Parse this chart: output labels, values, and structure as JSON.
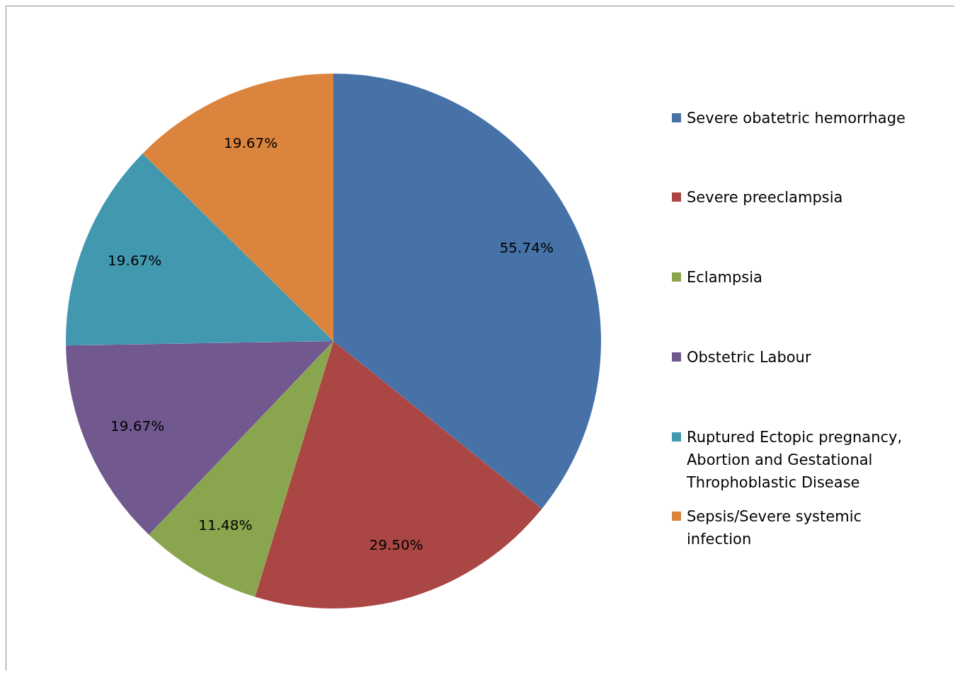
{
  "chart_data": {
    "type": "pie",
    "categories": [
      "Severe obatetric hemorrhage",
      "Severe preeclampsia",
      "Eclampsia",
      "Obstetric Labour",
      "Ruptured Ectopic pregnancy, Abortion and Gestational Throphoblastic Disease",
      "Sepsis/Severe systemic infection"
    ],
    "values": [
      55.74,
      29.5,
      11.48,
      19.67,
      19.67,
      19.67
    ],
    "value_labels": [
      "55.74%",
      "29.50%",
      "11.48%",
      "19.67%",
      "19.67%",
      "19.67%"
    ],
    "colors": [
      "#4672a8",
      "#aa4643",
      "#89a54e",
      "#71588f",
      "#4198af",
      "#db843d"
    ],
    "legend": "right"
  }
}
